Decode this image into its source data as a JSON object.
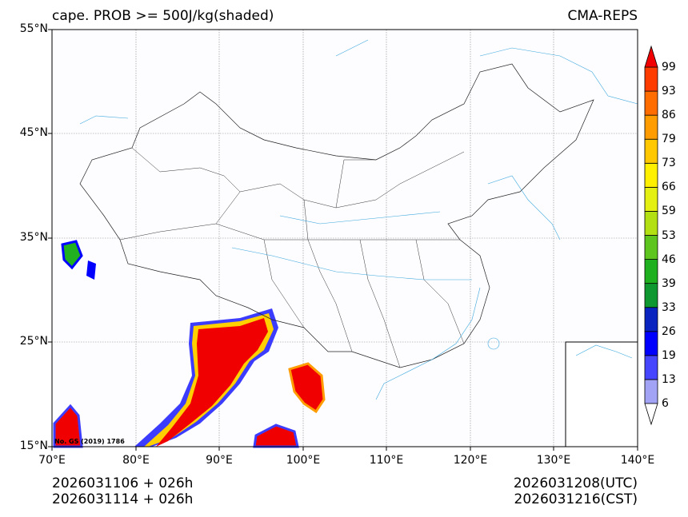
{
  "title": {
    "left": "cape. PROB >= 500J/kg(shaded)",
    "right": "CMA-REPS"
  },
  "lat_labels": [
    "55°N",
    "45°N",
    "35°N",
    "25°N",
    "15°N"
  ],
  "lon_labels": [
    "70°E",
    "80°E",
    "90°E",
    "100°E",
    "110°E",
    "120°E",
    "130°E",
    "140°E"
  ],
  "init_times": [
    "2026031106  +  026h",
    "2026031114  +  026h"
  ],
  "valid_times": [
    "2026031208(UTC)",
    "2026031216(CST)"
  ],
  "map_note": "No. GS (2019) 1786",
  "colorbar": {
    "labels": [
      "6",
      "13",
      "19",
      "26",
      "33",
      "39",
      "46",
      "53",
      "59",
      "66",
      "73",
      "79",
      "86",
      "93",
      "99"
    ],
    "colors": [
      "#a3a3f5",
      "#4646ff",
      "#0000ff",
      "#0a24c0",
      "#109830",
      "#1eb01e",
      "#5ec41e",
      "#b2e012",
      "#e4f012",
      "#fff000",
      "#ffc800",
      "#ff9c00",
      "#ff6c00",
      "#ff3c00"
    ],
    "over_color": "#f00000",
    "under_color": "#ffffff"
  }
}
